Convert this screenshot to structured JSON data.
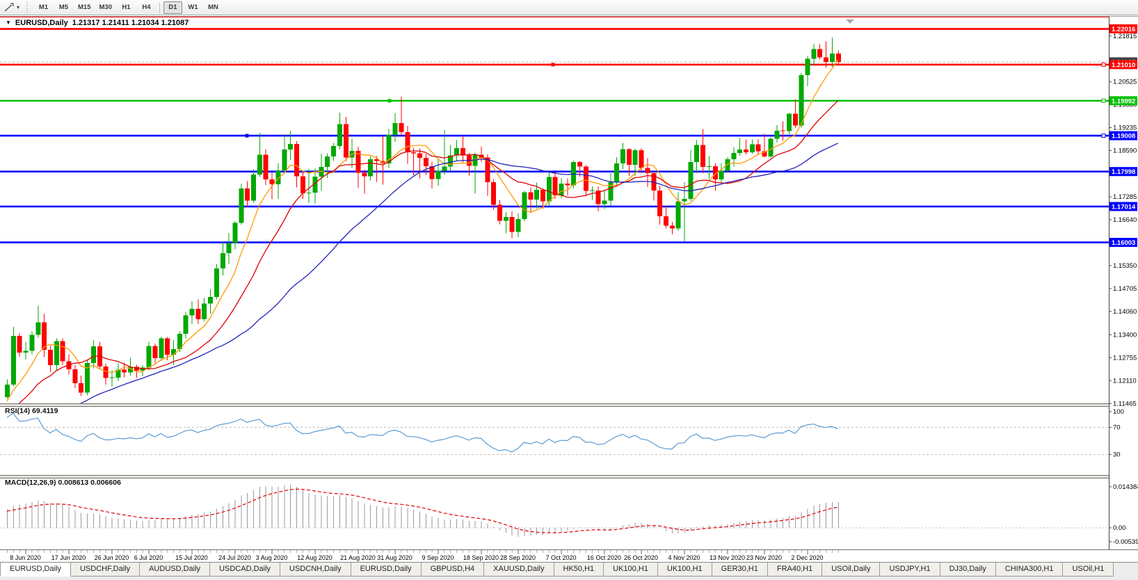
{
  "toolbar": {
    "timeframes": [
      "M1",
      "M5",
      "M15",
      "M30",
      "H1",
      "H4",
      "D1",
      "W1",
      "MN"
    ],
    "active_timeframe": "D1"
  },
  "title_bar": {
    "symbol_period": "EURUSD,Daily",
    "ohlc": "1.21317 1.21411 1.21034 1.21087"
  },
  "chart_data": {
    "type": "candlestick",
    "symbol": "EURUSD",
    "period": "Daily",
    "last_bar": {
      "open": 1.21317,
      "high": 1.21411,
      "low": 1.21034,
      "close": 1.21087
    },
    "price_axis": {
      "ticks": [
        1.21815,
        1.20525,
        1.1988,
        1.19235,
        1.1859,
        1.17285,
        1.1664,
        1.1535,
        1.14705,
        1.1406,
        1.134,
        1.12755,
        1.1211,
        1.11465
      ],
      "current_price": 1.21087,
      "current_price_text": "1.21087"
    },
    "levels": [
      {
        "price": 1.2236,
        "color": "#ff0000",
        "badge": false
      },
      {
        "price": 1.22016,
        "color": "#ff0000",
        "badge": true,
        "text": "1.22016"
      },
      {
        "price": 1.2101,
        "color": "#ff0000",
        "badge": true,
        "text": "1.21010",
        "hx": 795
      },
      {
        "price": 1.19992,
        "color": "#00c000",
        "badge": true,
        "text": "1.19992",
        "hx": 560
      },
      {
        "price": 1.19008,
        "color": "#0000ff",
        "badge": true,
        "text": "1.19008",
        "hx": 355
      },
      {
        "price": 1.17998,
        "color": "#0000ff",
        "badge": true,
        "text": "1.17998"
      },
      {
        "price": 1.17014,
        "color": "#0000ff",
        "badge": true,
        "text": "1.17014"
      },
      {
        "price": 1.16003,
        "color": "#0000ff",
        "badge": true,
        "text": "1.16003"
      }
    ],
    "x_labels": [
      [
        3,
        "8 Jun 2020"
      ],
      [
        10,
        "17 Jun 2020"
      ],
      [
        17,
        "26 Jun 2020"
      ],
      [
        23,
        "6 Jul 2020"
      ],
      [
        30,
        "15 Jul 2020"
      ],
      [
        37,
        "24 Jul 2020"
      ],
      [
        43,
        "3 Aug 2020"
      ],
      [
        50,
        "12 Aug 2020"
      ],
      [
        57,
        "21 Aug 2020"
      ],
      [
        63,
        "31 Aug 2020"
      ],
      [
        70,
        "9 Sep 2020"
      ],
      [
        77,
        "18 Sep 2020"
      ],
      [
        83,
        "28 Sep 2020"
      ],
      [
        90,
        "7 Oct 2020"
      ],
      [
        97,
        "16 Oct 2020"
      ],
      [
        103,
        "26 Oct 2020"
      ],
      [
        110,
        "4 Nov 2020"
      ],
      [
        117,
        "13 Nov 2020"
      ],
      [
        123,
        "23 Nov 2020"
      ],
      [
        130,
        "2 Dec 2020"
      ]
    ],
    "candles": [
      [
        1.1165,
        1.1215,
        1.116,
        1.12
      ],
      [
        1.12,
        1.1362,
        1.1195,
        1.1337
      ],
      [
        1.1337,
        1.1345,
        1.1278,
        1.129
      ],
      [
        1.129,
        1.132,
        1.127,
        1.1295
      ],
      [
        1.1295,
        1.135,
        1.1285,
        1.134
      ],
      [
        1.134,
        1.1422,
        1.1332,
        1.1375
      ],
      [
        1.1375,
        1.14,
        1.1277,
        1.1298
      ],
      [
        1.1298,
        1.131,
        1.1235,
        1.1255
      ],
      [
        1.1255,
        1.133,
        1.124,
        1.1322
      ],
      [
        1.1322,
        1.133,
        1.1255,
        1.1265
      ],
      [
        1.1265,
        1.1285,
        1.1228,
        1.1243
      ],
      [
        1.1243,
        1.1255,
        1.119,
        1.1204
      ],
      [
        1.1204,
        1.1225,
        1.1168,
        1.1177
      ],
      [
        1.1177,
        1.127,
        1.117,
        1.1261
      ],
      [
        1.1261,
        1.1325,
        1.1245,
        1.1308
      ],
      [
        1.1308,
        1.132,
        1.1245,
        1.1251
      ],
      [
        1.1251,
        1.126,
        1.12,
        1.1218
      ],
      [
        1.1218,
        1.124,
        1.1194,
        1.1219
      ],
      [
        1.1219,
        1.126,
        1.121,
        1.1242
      ],
      [
        1.1242,
        1.1262,
        1.122,
        1.1234
      ],
      [
        1.1234,
        1.1275,
        1.1225,
        1.125
      ],
      [
        1.125,
        1.1256,
        1.1218,
        1.1239
      ],
      [
        1.1239,
        1.1255,
        1.1223,
        1.1248
      ],
      [
        1.1248,
        1.132,
        1.124,
        1.1309
      ],
      [
        1.1309,
        1.1315,
        1.126,
        1.1274
      ],
      [
        1.1274,
        1.1335,
        1.1266,
        1.133
      ],
      [
        1.133,
        1.1334,
        1.1268,
        1.1284
      ],
      [
        1.1284,
        1.1325,
        1.1255,
        1.13
      ],
      [
        1.13,
        1.135,
        1.1292,
        1.1343
      ],
      [
        1.1343,
        1.1405,
        1.133,
        1.1395
      ],
      [
        1.1395,
        1.1435,
        1.137,
        1.1413
      ],
      [
        1.1413,
        1.144,
        1.137,
        1.1384
      ],
      [
        1.1384,
        1.1444,
        1.1378,
        1.1428
      ],
      [
        1.1428,
        1.1468,
        1.14,
        1.1447
      ],
      [
        1.1447,
        1.154,
        1.144,
        1.1527
      ],
      [
        1.1527,
        1.1601,
        1.1507,
        1.157
      ],
      [
        1.157,
        1.1627,
        1.154,
        1.1598
      ],
      [
        1.1598,
        1.166,
        1.1581,
        1.1655
      ],
      [
        1.1655,
        1.1766,
        1.165,
        1.1752
      ],
      [
        1.1752,
        1.1773,
        1.17,
        1.1718
      ],
      [
        1.1718,
        1.1806,
        1.1712,
        1.1791
      ],
      [
        1.1791,
        1.1909,
        1.1785,
        1.1847
      ],
      [
        1.1847,
        1.1863,
        1.1762,
        1.1778
      ],
      [
        1.1778,
        1.1798,
        1.1722,
        1.1764
      ],
      [
        1.1764,
        1.1824,
        1.1723,
        1.1803
      ],
      [
        1.1803,
        1.1905,
        1.1793,
        1.1862
      ],
      [
        1.1862,
        1.1915,
        1.1832,
        1.1878
      ],
      [
        1.1878,
        1.1885,
        1.1755,
        1.1786
      ],
      [
        1.1786,
        1.18,
        1.1723,
        1.1738
      ],
      [
        1.1738,
        1.1808,
        1.1711,
        1.174
      ],
      [
        1.174,
        1.1809,
        1.171,
        1.1785
      ],
      [
        1.1785,
        1.185,
        1.1746,
        1.1813
      ],
      [
        1.1813,
        1.1851,
        1.1782,
        1.1842
      ],
      [
        1.1842,
        1.188,
        1.183,
        1.1872
      ],
      [
        1.1872,
        1.1966,
        1.1863,
        1.1933
      ],
      [
        1.1933,
        1.1954,
        1.183,
        1.1839
      ],
      [
        1.1839,
        1.1892,
        1.181,
        1.1858
      ],
      [
        1.1858,
        1.187,
        1.1754,
        1.1796
      ],
      [
        1.1796,
        1.1805,
        1.1737,
        1.1786
      ],
      [
        1.1786,
        1.1842,
        1.1775,
        1.1834
      ],
      [
        1.1834,
        1.1843,
        1.1771,
        1.183
      ],
      [
        1.183,
        1.19,
        1.1763,
        1.1823
      ],
      [
        1.1823,
        1.192,
        1.181,
        1.1903
      ],
      [
        1.1903,
        1.1965,
        1.1883,
        1.1936
      ],
      [
        1.1936,
        1.2011,
        1.1902,
        1.1911
      ],
      [
        1.1911,
        1.1928,
        1.1822,
        1.1854
      ],
      [
        1.1854,
        1.1867,
        1.1789,
        1.1851
      ],
      [
        1.1851,
        1.1865,
        1.1781,
        1.1838
      ],
      [
        1.1838,
        1.185,
        1.179,
        1.1815
      ],
      [
        1.1815,
        1.1828,
        1.1752,
        1.1779
      ],
      [
        1.1779,
        1.1834,
        1.176,
        1.1802
      ],
      [
        1.1802,
        1.1917,
        1.179,
        1.1814
      ],
      [
        1.1814,
        1.1875,
        1.18,
        1.1845
      ],
      [
        1.1845,
        1.1888,
        1.183,
        1.1866
      ],
      [
        1.1866,
        1.19,
        1.1826,
        1.1845
      ],
      [
        1.1845,
        1.1852,
        1.1788,
        1.1816
      ],
      [
        1.1816,
        1.1853,
        1.1737,
        1.1847
      ],
      [
        1.1847,
        1.1871,
        1.1827,
        1.1839
      ],
      [
        1.1839,
        1.1848,
        1.1732,
        1.177
      ],
      [
        1.177,
        1.1778,
        1.1692,
        1.1706
      ],
      [
        1.1706,
        1.172,
        1.1651,
        1.1661
      ],
      [
        1.1661,
        1.1686,
        1.1626,
        1.1672
      ],
      [
        1.1672,
        1.1688,
        1.1612,
        1.163
      ],
      [
        1.163,
        1.1683,
        1.1615,
        1.1666
      ],
      [
        1.1666,
        1.1745,
        1.166,
        1.1741
      ],
      [
        1.1741,
        1.1755,
        1.1684,
        1.1721
      ],
      [
        1.1721,
        1.1769,
        1.1695,
        1.1748
      ],
      [
        1.1748,
        1.1752,
        1.1695,
        1.1716
      ],
      [
        1.1716,
        1.1798,
        1.1705,
        1.1784
      ],
      [
        1.1784,
        1.1797,
        1.1723,
        1.1733
      ],
      [
        1.1733,
        1.1782,
        1.1725,
        1.1766
      ],
      [
        1.1766,
        1.1781,
        1.1733,
        1.1761
      ],
      [
        1.1761,
        1.1831,
        1.1752,
        1.1827
      ],
      [
        1.1827,
        1.183,
        1.1785,
        1.1814
      ],
      [
        1.1814,
        1.1818,
        1.1731,
        1.1745
      ],
      [
        1.1745,
        1.1758,
        1.172,
        1.1746
      ],
      [
        1.1746,
        1.1758,
        1.1688,
        1.1708
      ],
      [
        1.1708,
        1.1746,
        1.1694,
        1.1718
      ],
      [
        1.1718,
        1.1795,
        1.1703,
        1.177
      ],
      [
        1.177,
        1.184,
        1.176,
        1.1823
      ],
      [
        1.1823,
        1.188,
        1.1807,
        1.1863
      ],
      [
        1.1863,
        1.1866,
        1.1787,
        1.1819
      ],
      [
        1.1819,
        1.1864,
        1.1786,
        1.186
      ],
      [
        1.186,
        1.1866,
        1.1796,
        1.181
      ],
      [
        1.181,
        1.1838,
        1.1756,
        1.1795
      ],
      [
        1.1795,
        1.18,
        1.1718,
        1.1746
      ],
      [
        1.1746,
        1.1759,
        1.165,
        1.1674
      ],
      [
        1.1674,
        1.1704,
        1.164,
        1.1647
      ],
      [
        1.1647,
        1.1658,
        1.1623,
        1.164
      ],
      [
        1.164,
        1.1741,
        1.1633,
        1.1716
      ],
      [
        1.1716,
        1.177,
        1.1602,
        1.1723
      ],
      [
        1.1723,
        1.1861,
        1.1717,
        1.1827
      ],
      [
        1.1827,
        1.1888,
        1.1795,
        1.1875
      ],
      [
        1.1875,
        1.192,
        1.1795,
        1.1813
      ],
      [
        1.1813,
        1.1843,
        1.178,
        1.1815
      ],
      [
        1.1815,
        1.1824,
        1.1745,
        1.1778
      ],
      [
        1.1778,
        1.1823,
        1.177,
        1.1802
      ],
      [
        1.1802,
        1.184,
        1.1798,
        1.1834
      ],
      [
        1.1834,
        1.1869,
        1.1814,
        1.1852
      ],
      [
        1.1852,
        1.1894,
        1.1844,
        1.1862
      ],
      [
        1.1862,
        1.189,
        1.1848,
        1.1854
      ],
      [
        1.1854,
        1.189,
        1.185,
        1.1877
      ],
      [
        1.1877,
        1.1891,
        1.1849,
        1.1857
      ],
      [
        1.1857,
        1.1906,
        1.1839,
        1.1842
      ],
      [
        1.1842,
        1.1896,
        1.1838,
        1.1892
      ],
      [
        1.1892,
        1.193,
        1.1881,
        1.1915
      ],
      [
        1.1915,
        1.1941,
        1.1886,
        1.1914
      ],
      [
        1.1914,
        1.1965,
        1.1905,
        1.1963
      ],
      [
        1.1963,
        1.2003,
        1.1923,
        1.1929
      ],
      [
        1.1929,
        1.2077,
        1.1924,
        1.2071
      ],
      [
        1.2071,
        1.2125,
        1.204,
        1.2117
      ],
      [
        1.2117,
        1.216,
        1.2098,
        1.2145
      ],
      [
        1.2145,
        1.2159,
        1.2115,
        1.2121
      ],
      [
        1.2121,
        1.2166,
        1.2092,
        1.2109
      ],
      [
        1.2109,
        1.2177,
        1.2095,
        1.2132
      ],
      [
        1.21317,
        1.21411,
        1.21034,
        1.21087
      ]
    ],
    "pre_history_closes": [
      1.082,
      1.0835,
      1.0825,
      1.085,
      1.086,
      1.0845,
      1.087,
      1.089,
      1.088,
      1.09,
      1.0915,
      1.0905,
      1.0925,
      1.094,
      1.093,
      1.095,
      1.0945,
      1.096,
      1.097,
      1.0965,
      1.098,
      1.0975,
      1.099,
      1.101,
      1.0995,
      1.1015,
      1.104,
      1.1035,
      1.106,
      1.108,
      1.107,
      1.1095,
      1.111,
      1.11,
      1.1125,
      1.114,
      1.113,
      1.115,
      1.116,
      1.1165
    ],
    "moving_averages": [
      {
        "name": "fast",
        "period": 7,
        "color": "#ff9900"
      },
      {
        "name": "mid",
        "period": 15,
        "color": "#dd0000"
      },
      {
        "name": "slow",
        "period": 34,
        "color": "#2222bb"
      }
    ],
    "indicators": {
      "rsi": {
        "label": "RSI(14) 69.4119",
        "period": 14,
        "value": 69.4119,
        "levels": [
          70,
          30
        ],
        "scale_labels": [
          "100",
          "70",
          "30"
        ]
      },
      "macd": {
        "label": "MACD(12,26,9) 0.008613 0.006606",
        "fast": 12,
        "slow": 26,
        "signal_period": 9,
        "macd_value": 0.008613,
        "signal_value": 0.006606,
        "scale_labels": [
          "0.014384",
          "0.00",
          "-0.00539"
        ]
      }
    },
    "colors": {
      "bull": "#00a800",
      "bear": "#ff0000",
      "bid_line": "#b8b8b8",
      "rsi_line": "#5b9bd5",
      "macd_hist": "#9a9a9a",
      "macd_signal": "#e00000",
      "current_badge": "#404040"
    }
  },
  "tabs": {
    "active_index": 0,
    "items": [
      "EURUSD,Daily",
      "USDCHF,Daily",
      "AUDUSD,Daily",
      "USDCAD,Daily",
      "USDCNH,Daily",
      "EURUSD,Daily",
      "GBPUSD,H4",
      "XAUUSD,Daily",
      "HK50,H1",
      "UK100,H1",
      "UK100,H1",
      "GER30,H1",
      "FRA40,H1",
      "USOil,Daily",
      "USDJPY,H1",
      "DJ30,Daily",
      "CHINA300,H1",
      "USOil,H1"
    ]
  }
}
